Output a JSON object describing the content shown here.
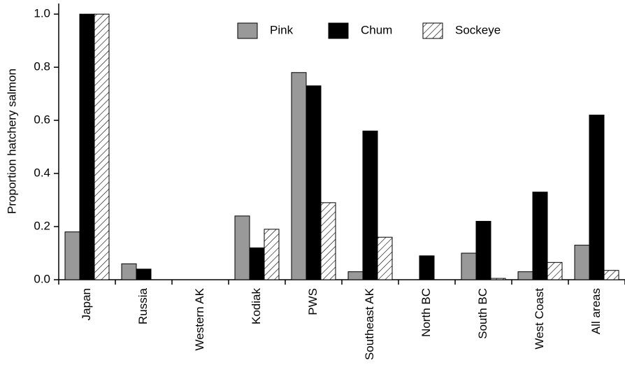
{
  "chart_data": {
    "type": "bar",
    "y_label": "Proportion hatchery salmon",
    "categories": [
      "Japan",
      "Russia",
      "Western AK",
      "Kodiak",
      "PWS",
      "Southeast AK",
      "North BC",
      "South BC",
      "West Coast",
      "All areas"
    ],
    "series": [
      {
        "name": "Pink",
        "color": "#999999",
        "values": [
          0.18,
          0.06,
          0,
          0.24,
          0.78,
          0.03,
          0,
          0.1,
          0.03,
          0.13
        ]
      },
      {
        "name": "Chum",
        "color": "#000000",
        "values": [
          1.0,
          0.04,
          0,
          0.12,
          0.73,
          0.56,
          0.09,
          0.22,
          0.33,
          0.62
        ]
      },
      {
        "name": "Sockeye",
        "color": "#ffffff",
        "hatch": true,
        "values": [
          1.0,
          0,
          0,
          0.19,
          0.29,
          0.16,
          0,
          0.005,
          0.065,
          0.035
        ]
      }
    ],
    "ylim": [
      0,
      1.04
    ],
    "yticks": [
      {
        "value": 0,
        "label": "0.0"
      },
      0.2,
      0.4,
      0.6,
      0.8,
      {
        "value": 1.0,
        "label": "1.0"
      }
    ],
    "grid": false
  }
}
